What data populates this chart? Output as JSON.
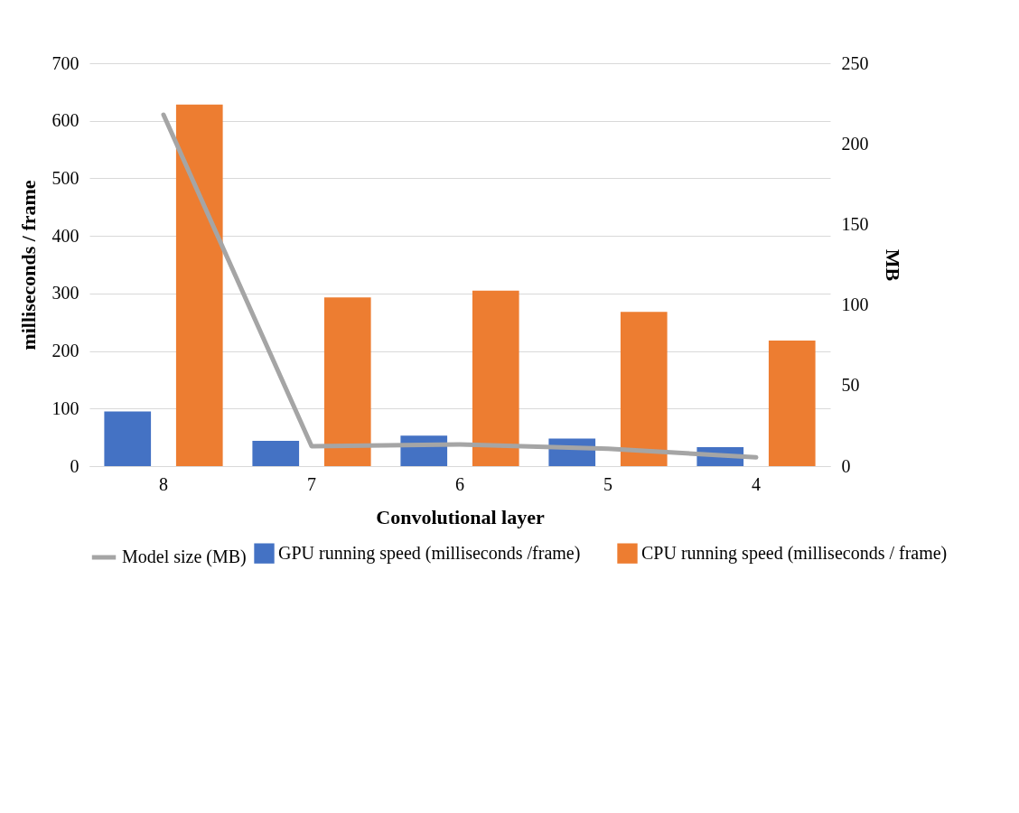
{
  "chart_data": {
    "type": "bar",
    "xlabel": "Convolutional layer",
    "ylabel": "milliseconds / frame",
    "y2label": "MB",
    "categories": [
      "8",
      "7",
      "6",
      "5",
      "4"
    ],
    "series": [
      {
        "name": "GPU running speed (milliseconds /frame)",
        "color": "#4472c4",
        "values": [
          95,
          44,
          53,
          48,
          33
        ]
      },
      {
        "name": "CPU running speed (milliseconds / frame)",
        "color": "#ed7d31",
        "values": [
          628,
          293,
          305,
          268,
          218
        ]
      },
      {
        "name": "Model size (MB)",
        "type": "line",
        "axis": "y2",
        "color": "#a5a5a5",
        "values": [
          218,
          12.3,
          13.5,
          10.8,
          5.4
        ]
      }
    ],
    "ylim": [
      0,
      700
    ],
    "yticks": [
      0,
      100,
      200,
      300,
      400,
      500,
      600,
      700
    ],
    "y2lim": [
      0,
      250
    ],
    "y2ticks": [
      0,
      50,
      100,
      150,
      200,
      250
    ],
    "grid": "y",
    "legend": "bottom",
    "marker": "none"
  }
}
